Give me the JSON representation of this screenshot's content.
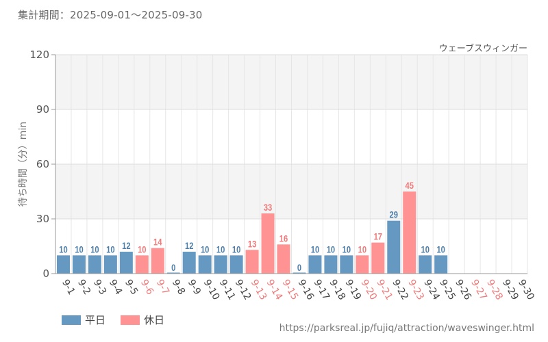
{
  "period_label": "集計期間：2025-09-01～2025-09-30",
  "source_url": "https://parksreal.jp/fujiq/attraction/waveswinger.html",
  "colors": {
    "weekday": "#6699c2",
    "holiday": "#ff9292",
    "weekday_text": "#4d7ea8",
    "holiday_text": "#f07a7a"
  },
  "legend": [
    {
      "key": "weekday",
      "label": "平日"
    },
    {
      "key": "holiday",
      "label": "休日"
    }
  ],
  "chart_data": {
    "type": "bar",
    "title": "ウェーブスウィンガー",
    "ylabel": "待ち時間（分）min",
    "xlabel": "",
    "ylim": [
      0,
      120
    ],
    "yticks": [
      0,
      30,
      60,
      90,
      120
    ],
    "categories": [
      "9-1",
      "9-2",
      "9-3",
      "9-4",
      "9-5",
      "9-6",
      "9-7",
      "9-8",
      "9-9",
      "9-10",
      "9-11",
      "9-12",
      "9-13",
      "9-14",
      "9-15",
      "9-16",
      "9-17",
      "9-18",
      "9-19",
      "9-20",
      "9-21",
      "9-22",
      "9-23",
      "9-24",
      "9-25",
      "9-26",
      "9-27",
      "9-28",
      "9-29",
      "9-30"
    ],
    "values": [
      10,
      10,
      10,
      10,
      12,
      10,
      14,
      0,
      12,
      10,
      10,
      10,
      13,
      33,
      16,
      0,
      10,
      10,
      10,
      10,
      17,
      29,
      45,
      10,
      10,
      null,
      null,
      null,
      null,
      null
    ],
    "day_type": [
      "weekday",
      "weekday",
      "weekday",
      "weekday",
      "weekday",
      "holiday",
      "holiday",
      "weekday",
      "weekday",
      "weekday",
      "weekday",
      "weekday",
      "holiday",
      "holiday",
      "holiday",
      "weekday",
      "weekday",
      "weekday",
      "weekday",
      "holiday",
      "holiday",
      "weekday",
      "holiday",
      "weekday",
      "weekday",
      "weekday",
      "holiday",
      "holiday",
      "weekday",
      "weekday"
    ],
    "grid": true,
    "legend_position": "bottom-left"
  }
}
